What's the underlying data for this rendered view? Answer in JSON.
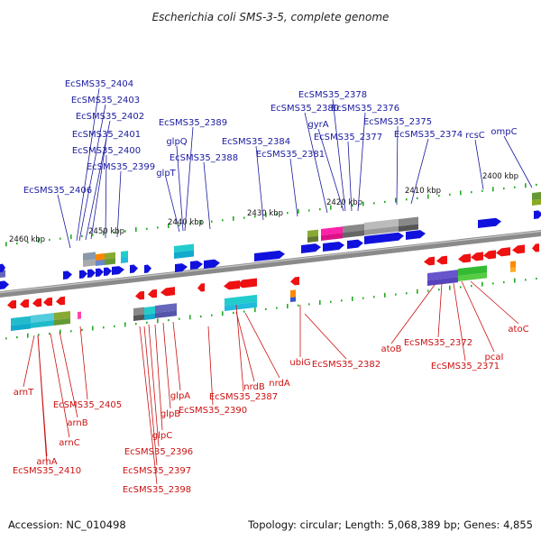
{
  "title": "Escherichia coli SMS-3-5, complete genome",
  "footer": {
    "accession": "Accession: NC_010498",
    "summary": "Topology: circular; Length: 5,068,389 bp; Genes: 4,855"
  },
  "colors": {
    "forward_label": "#1a1aa0",
    "reverse_label": "#cc1111",
    "forward_gene": "#1111dd",
    "reverse_gene": "#ee1111",
    "backbone": "#777777",
    "tick": "#22aa22"
  },
  "scale_labels": [
    "2460 kbp",
    "2450 kbp",
    "2440 kbp",
    "2430 kbp",
    "2420 kbp",
    "2410 kbp",
    "2400 kbp"
  ],
  "forward_labels": [
    "EcSMS35_2404",
    "EcSMS35_2403",
    "EcSMS35_2402",
    "EcSMS35_2401",
    "EcSMS35_2400",
    "EcSMS35_2399",
    "EcSMS35_2406",
    "EcSMS35_2389",
    "glpQ",
    "EcSMS35_2388",
    "glpT",
    "EcSMS35_2384",
    "EcSMS35_2381",
    "EcSMS35_2378",
    "EcSMS35_2380",
    "EcSMS35_2376",
    "gyrA",
    "EcSMS35_2377",
    "EcSMS35_2375",
    "EcSMS35_2374",
    "rcsC",
    "ompC"
  ],
  "reverse_labels": [
    "arnT",
    "EcSMS35_2405",
    "arnB",
    "arnC",
    "arnA",
    "EcSMS35_2410",
    "glpA",
    "glpB",
    "glpC",
    "EcSMS35_2396",
    "EcSMS35_2397",
    "EcSMS35_2398",
    "EcSMS35_2387",
    "EcSMS35_2390",
    "nrdB",
    "nrdA",
    "ubiG",
    "EcSMS35_2382",
    "atoB",
    "EcSMS35_2372",
    "EcSMS35_2371",
    "pcaI",
    "atoC"
  ]
}
